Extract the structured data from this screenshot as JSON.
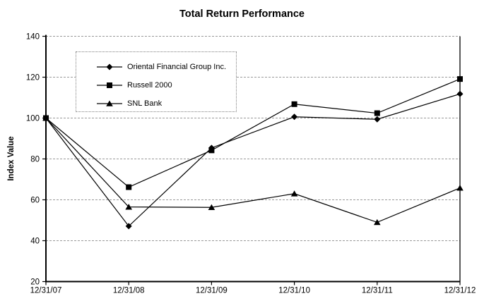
{
  "chart_data": {
    "type": "line",
    "title": "Total Return Performance",
    "ylabel": "Index Value",
    "xlabel": "",
    "categories": [
      "12/31/07",
      "12/31/08",
      "12/31/09",
      "12/31/10",
      "12/31/11",
      "12/31/12"
    ],
    "series": [
      {
        "name": "Oriental Financial Group Inc.",
        "marker": "diamond",
        "values": [
          100,
          47.1,
          85.4,
          100.6,
          99.4,
          111.8
        ]
      },
      {
        "name": "Russell 2000",
        "marker": "square",
        "values": [
          100,
          66.2,
          84.2,
          106.8,
          102.4,
          119.1
        ]
      },
      {
        "name": "SNL Bank",
        "marker": "triangle",
        "values": [
          100,
          56.5,
          56.3,
          63.0,
          49.0,
          65.8
        ]
      }
    ],
    "ylim": [
      20,
      140
    ],
    "yticks": [
      20,
      40,
      60,
      80,
      100,
      120,
      140
    ],
    "grid": true,
    "gridline_style": "dashed",
    "legend_position": "upper-left-inside",
    "colors": {
      "series": "#000000",
      "grid": "#999999",
      "axis": "#000000",
      "text": "#000000",
      "background": "#ffffff"
    }
  }
}
